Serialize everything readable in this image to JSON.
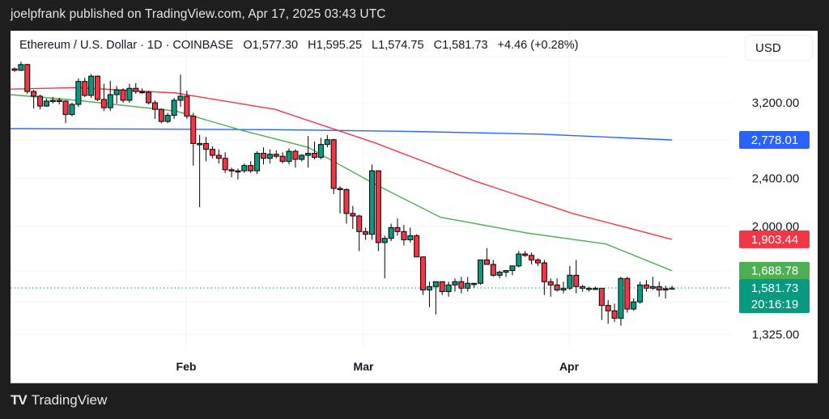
{
  "header": {
    "publish_text": "joelpfrank published on TradingView.com, Apr 17, 2025 03:43 UTC"
  },
  "legend": {
    "symbol": "Ethereum / U.S. Dollar · 1D · COINBASE",
    "open": "O1,577.30",
    "high": "H1,595.25",
    "low": "L1,574.75",
    "close": "C1,581.73",
    "change": "+4.46 (+0.28%)"
  },
  "toolbar": {
    "currency_label": "USD"
  },
  "footer": {
    "brand_mark": "TV",
    "brand_name": "TradingView"
  },
  "colors": {
    "up": "#089981",
    "down": "#f23645",
    "ma_blue": "#2962ff",
    "ma_red": "#f23645",
    "ma_green": "#4caf50",
    "last_price": "#089981"
  },
  "chart_data": {
    "type": "candlestick",
    "title": "Ethereum / U.S. Dollar · 1D · COINBASE",
    "scale": "log",
    "y_ticks": [
      "3,200.00",
      "2,400.00",
      "2,000.00",
      "1,325.00"
    ],
    "y_tick_values": [
      3200,
      2400,
      2000,
      1325
    ],
    "x_ticks": [
      "Feb",
      "Mar",
      "Apr"
    ],
    "price_tags": [
      {
        "label": "2,778.01",
        "value": 2778.01,
        "color": "#2962ff",
        "series": "MA (blue)"
      },
      {
        "label": "1,903.44",
        "value": 1903.44,
        "color": "#f23645",
        "series": "MA (red)"
      },
      {
        "label": "1,688.78",
        "value": 1688.78,
        "color": "#4caf50",
        "series": "MA (green)"
      },
      {
        "label": "1,581.73",
        "sublabel": "20:16:19",
        "value": 1581.73,
        "color": "#089981",
        "series": "Last price"
      }
    ],
    "last_price": 1581.73,
    "countdown": "20:16:19",
    "ohlc_last": {
      "open": 1577.3,
      "high": 1595.25,
      "low": 1574.75,
      "close": 1581.73,
      "change": 4.46,
      "change_pct": 0.28
    },
    "candles": [
      [
        3640,
        3660,
        3600,
        3620
      ],
      [
        3620,
        3740,
        3610,
        3700
      ],
      [
        3700,
        3710,
        3310,
        3340
      ],
      [
        3340,
        3360,
        3130,
        3280
      ],
      [
        3280,
        3300,
        3120,
        3160
      ],
      [
        3160,
        3250,
        3150,
        3220
      ],
      [
        3220,
        3270,
        3190,
        3230
      ],
      [
        3230,
        3260,
        3180,
        3220
      ],
      [
        3220,
        3230,
        2960,
        3060
      ],
      [
        3060,
        3200,
        3040,
        3180
      ],
      [
        3180,
        3510,
        3150,
        3470
      ],
      [
        3470,
        3520,
        3270,
        3290
      ],
      [
        3290,
        3570,
        3260,
        3540
      ],
      [
        3540,
        3550,
        3220,
        3240
      ],
      [
        3240,
        3440,
        3100,
        3140
      ],
      [
        3140,
        3480,
        3100,
        3300
      ],
      [
        3300,
        3410,
        3190,
        3360
      ],
      [
        3360,
        3380,
        3200,
        3230
      ],
      [
        3230,
        3440,
        3200,
        3380
      ],
      [
        3380,
        3450,
        3310,
        3340
      ],
      [
        3340,
        3380,
        3310,
        3330
      ],
      [
        3330,
        3350,
        3180,
        3200
      ],
      [
        3200,
        3230,
        3010,
        3120
      ],
      [
        3120,
        3130,
        2960,
        2980
      ],
      [
        2980,
        3080,
        2960,
        3050
      ],
      [
        3050,
        3260,
        3010,
        3230
      ],
      [
        3230,
        3560,
        3150,
        3280
      ],
      [
        3280,
        3350,
        3010,
        3040
      ],
      [
        3040,
        3080,
        2520,
        2740
      ],
      [
        2740,
        2830,
        2150,
        2740
      ],
      [
        2740,
        2810,
        2560,
        2680
      ],
      [
        2680,
        2710,
        2590,
        2620
      ],
      [
        2620,
        2680,
        2540,
        2590
      ],
      [
        2590,
        2650,
        2450,
        2480
      ],
      [
        2480,
        2500,
        2410,
        2470
      ],
      [
        2470,
        2490,
        2390,
        2470
      ],
      [
        2470,
        2540,
        2450,
        2520
      ],
      [
        2520,
        2560,
        2450,
        2470
      ],
      [
        2470,
        2660,
        2440,
        2640
      ],
      [
        2640,
        2700,
        2530,
        2590
      ],
      [
        2590,
        2680,
        2540,
        2630
      ],
      [
        2630,
        2670,
        2590,
        2610
      ],
      [
        2610,
        2650,
        2540,
        2560
      ],
      [
        2560,
        2690,
        2530,
        2660
      ],
      [
        2660,
        2680,
        2500,
        2580
      ],
      [
        2580,
        2630,
        2560,
        2620
      ],
      [
        2620,
        2820,
        2500,
        2640
      ],
      [
        2640,
        2760,
        2580,
        2600
      ],
      [
        2600,
        2800,
        2580,
        2730
      ],
      [
        2730,
        2830,
        2700,
        2780
      ],
      [
        2780,
        2790,
        2260,
        2310
      ],
      [
        2310,
        2330,
        2100,
        2300
      ],
      [
        2300,
        2310,
        2020,
        2100
      ],
      [
        2100,
        2160,
        1980,
        2080
      ],
      [
        2080,
        2090,
        1820,
        1960
      ],
      [
        1960,
        1990,
        1900,
        1940
      ],
      [
        1940,
        2530,
        1900,
        2470
      ],
      [
        2470,
        2470,
        1820,
        1880
      ],
      [
        1880,
        1930,
        1640,
        1910
      ],
      [
        1910,
        2020,
        1890,
        1990
      ],
      [
        1990,
        2060,
        1930,
        1960
      ],
      [
        1960,
        2010,
        1860,
        1900
      ],
      [
        1900,
        1990,
        1880,
        1930
      ],
      [
        1930,
        1940,
        1800,
        1780
      ],
      [
        1780,
        1780,
        1540,
        1570
      ],
      [
        1570,
        1620,
        1470,
        1590
      ],
      [
        1590,
        1600,
        1430,
        1620
      ],
      [
        1620,
        1610,
        1540,
        1560
      ],
      [
        1560,
        1620,
        1530,
        1600
      ],
      [
        1600,
        1640,
        1560,
        1620
      ],
      [
        1620,
        1650,
        1550,
        1580
      ],
      [
        1580,
        1650,
        1560,
        1610
      ],
      [
        1610,
        1610,
        1580,
        1610
      ],
      [
        1610,
        1700,
        1600,
        1760
      ],
      [
        1760,
        1840,
        1740,
        1730
      ],
      [
        1730,
        1760,
        1650,
        1660
      ],
      [
        1660,
        1690,
        1640,
        1680
      ],
      [
        1680,
        1690,
        1650,
        1690
      ],
      [
        1690,
        1700,
        1660,
        1720
      ],
      [
        1720,
        1820,
        1710,
        1800
      ],
      [
        1800,
        1820,
        1780,
        1790
      ],
      [
        1790,
        1810,
        1730,
        1760
      ],
      [
        1760,
        1770,
        1720,
        1740
      ],
      [
        1740,
        1760,
        1540,
        1620
      ],
      [
        1620,
        1640,
        1530,
        1600
      ],
      [
        1600,
        1640,
        1560,
        1570
      ],
      [
        1570,
        1620,
        1550,
        1580
      ],
      [
        1580,
        1720,
        1570,
        1660
      ],
      [
        1660,
        1760,
        1550,
        1590
      ],
      [
        1590,
        1600,
        1560,
        1580
      ],
      [
        1580,
        1590,
        1560,
        1580
      ],
      [
        1580,
        1590,
        1570,
        1580
      ],
      [
        1580,
        1580,
        1400,
        1480
      ],
      [
        1480,
        1510,
        1380,
        1450
      ],
      [
        1450,
        1490,
        1390,
        1410
      ],
      [
        1410,
        1650,
        1370,
        1640
      ],
      [
        1640,
        1650,
        1440,
        1460
      ],
      [
        1460,
        1520,
        1450,
        1500
      ],
      [
        1500,
        1620,
        1490,
        1600
      ],
      [
        1600,
        1630,
        1560,
        1580
      ],
      [
        1580,
        1650,
        1570,
        1590
      ],
      [
        1590,
        1620,
        1530,
        1570
      ],
      [
        1570,
        1595,
        1520,
        1577
      ],
      [
        1577.3,
        1595.25,
        1574.75,
        1581.73
      ]
    ],
    "ma_blue_points": [
      [
        0,
        2900
      ],
      [
        0.2,
        2895
      ],
      [
        0.4,
        2888
      ],
      [
        0.6,
        2870
      ],
      [
        0.8,
        2840
      ],
      [
        1,
        2778
      ]
    ],
    "ma_red_points": [
      [
        0,
        3370
      ],
      [
        0.1,
        3390
      ],
      [
        0.25,
        3320
      ],
      [
        0.4,
        3120
      ],
      [
        0.55,
        2750
      ],
      [
        0.7,
        2380
      ],
      [
        0.85,
        2100
      ],
      [
        1,
        1903
      ]
    ],
    "ma_green_points": [
      [
        0,
        3300
      ],
      [
        0.1,
        3230
      ],
      [
        0.25,
        3100
      ],
      [
        0.35,
        2880
      ],
      [
        0.45,
        2700
      ],
      [
        0.55,
        2350
      ],
      [
        0.65,
        2070
      ],
      [
        0.78,
        1950
      ],
      [
        0.9,
        1870
      ],
      [
        1,
        1689
      ]
    ]
  }
}
